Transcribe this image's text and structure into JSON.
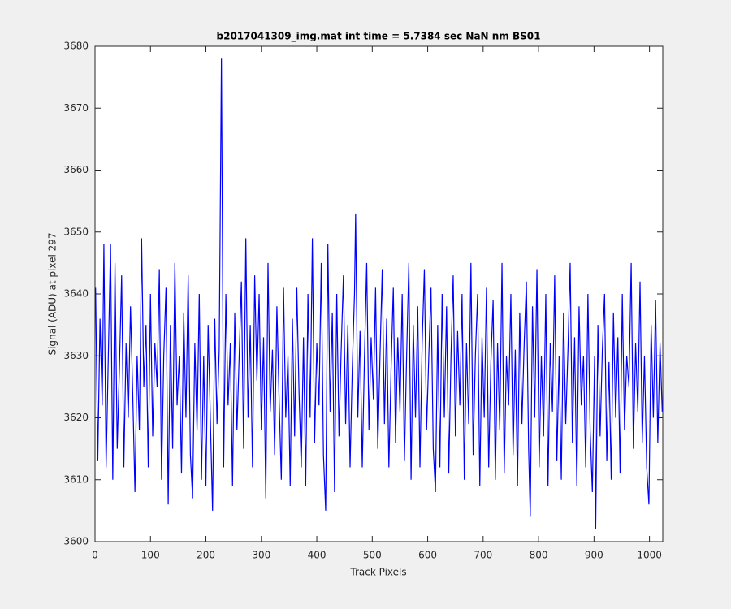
{
  "chart_data": {
    "type": "line",
    "title": "b2017041309_img.mat int time = 5.7384 sec  NaN nm BS01",
    "x_label": "Track Pixels",
    "y_label": "Signal (ADU) at pixel 297",
    "color": "#0000ff",
    "x": [
      1,
      5,
      9,
      13,
      16,
      20,
      24,
      28,
      32,
      36,
      40,
      44,
      48,
      52,
      56,
      60,
      64,
      68,
      72,
      76,
      80,
      84,
      88,
      92,
      96,
      100,
      104,
      108,
      112,
      116,
      120,
      124,
      128,
      132,
      136,
      140,
      144,
      148,
      152,
      156,
      160,
      164,
      168,
      172,
      176,
      180,
      184,
      188,
      192,
      196,
      200,
      204,
      208,
      212,
      216,
      220,
      224,
      228,
      232,
      236,
      240,
      244,
      248,
      252,
      256,
      260,
      264,
      268,
      272,
      276,
      280,
      284,
      288,
      292,
      296,
      300,
      304,
      308,
      312,
      316,
      320,
      324,
      328,
      332,
      336,
      340,
      344,
      348,
      352,
      356,
      360,
      364,
      368,
      372,
      376,
      380,
      384,
      388,
      392,
      396,
      400,
      404,
      408,
      412,
      416,
      420,
      424,
      428,
      432,
      436,
      440,
      444,
      448,
      452,
      456,
      460,
      464,
      468,
      470,
      474,
      478,
      482,
      486,
      490,
      494,
      498,
      502,
      506,
      510,
      514,
      518,
      522,
      526,
      530,
      534,
      538,
      542,
      546,
      550,
      554,
      558,
      562,
      566,
      570,
      574,
      578,
      582,
      586,
      590,
      594,
      598,
      602,
      606,
      610,
      614,
      618,
      622,
      626,
      630,
      634,
      638,
      642,
      646,
      650,
      654,
      658,
      662,
      666,
      670,
      674,
      678,
      682,
      686,
      690,
      694,
      698,
      702,
      706,
      710,
      714,
      718,
      722,
      726,
      730,
      734,
      738,
      742,
      746,
      750,
      754,
      758,
      762,
      766,
      770,
      774,
      778,
      782,
      785,
      789,
      793,
      797,
      801,
      805,
      809,
      813,
      817,
      821,
      825,
      829,
      833,
      837,
      841,
      845,
      849,
      853,
      857,
      861,
      865,
      869,
      873,
      877,
      881,
      885,
      889,
      893,
      897,
      901,
      903,
      907,
      911,
      915,
      919,
      923,
      927,
      931,
      935,
      939,
      943,
      947,
      951,
      955,
      959,
      963,
      967,
      971,
      975,
      979,
      983,
      987,
      991,
      995,
      999,
      1003,
      1007,
      1011,
      1015,
      1019,
      1023
    ],
    "values": [
      3641,
      3613,
      3636,
      3622,
      3648,
      3612,
      3630,
      3648,
      3610,
      3645,
      3615,
      3628,
      3643,
      3612,
      3632,
      3620,
      3638,
      3624,
      3608,
      3630,
      3618,
      3649,
      3625,
      3635,
      3612,
      3640,
      3617,
      3632,
      3625,
      3644,
      3610,
      3630,
      3641,
      3606,
      3635,
      3615,
      3645,
      3622,
      3630,
      3611,
      3637,
      3620,
      3643,
      3614,
      3607,
      3632,
      3618,
      3640,
      3610,
      3630,
      3609,
      3635,
      3620,
      3605,
      3636,
      3619,
      3631,
      3678,
      3612,
      3640,
      3622,
      3632,
      3609,
      3637,
      3618,
      3630,
      3642,
      3615,
      3649,
      3620,
      3635,
      3612,
      3643,
      3626,
      3640,
      3618,
      3633,
      3607,
      3645,
      3621,
      3631,
      3614,
      3638,
      3623,
      3610,
      3641,
      3620,
      3630,
      3609,
      3636,
      3617,
      3641,
      3624,
      3612,
      3633,
      3609,
      3640,
      3620,
      3649,
      3616,
      3632,
      3622,
      3645,
      3614,
      3605,
      3648,
      3621,
      3637,
      3608,
      3640,
      3617,
      3631,
      3643,
      3619,
      3635,
      3612,
      3628,
      3640,
      3653,
      3620,
      3634,
      3612,
      3630,
      3645,
      3618,
      3633,
      3623,
      3641,
      3615,
      3630,
      3644,
      3619,
      3636,
      3612,
      3628,
      3641,
      3616,
      3633,
      3621,
      3640,
      3613,
      3630,
      3645,
      3610,
      3635,
      3620,
      3638,
      3612,
      3632,
      3644,
      3618,
      3630,
      3641,
      3615,
      3608,
      3635,
      3612,
      3640,
      3620,
      3638,
      3611,
      3630,
      3643,
      3617,
      3634,
      3622,
      3640,
      3610,
      3632,
      3619,
      3645,
      3614,
      3630,
      3640,
      3609,
      3633,
      3620,
      3641,
      3612,
      3629,
      3639,
      3610,
      3632,
      3618,
      3645,
      3611,
      3630,
      3622,
      3640,
      3614,
      3631,
      3609,
      3637,
      3619,
      3632,
      3642,
      3615,
      3604,
      3638,
      3620,
      3644,
      3612,
      3630,
      3617,
      3640,
      3609,
      3632,
      3621,
      3643,
      3613,
      3630,
      3610,
      3637,
      3619,
      3631,
      3645,
      3616,
      3633,
      3609,
      3638,
      3622,
      3630,
      3612,
      3640,
      3618,
      3608,
      3630,
      3602,
      3635,
      3617,
      3631,
      3640,
      3613,
      3629,
      3610,
      3637,
      3620,
      3633,
      3611,
      3640,
      3618,
      3630,
      3625,
      3645,
      3615,
      3632,
      3621,
      3642,
      3616,
      3630,
      3612,
      3606,
      3635,
      3620,
      3639,
      3616,
      3632,
      3621
    ],
    "xlim": [
      0,
      1024
    ],
    "xticks": [
      0,
      100,
      200,
      300,
      400,
      500,
      600,
      700,
      800,
      900,
      1000
    ],
    "ylim": [
      3600,
      3680
    ],
    "yticks": [
      3600,
      3610,
      3620,
      3630,
      3640,
      3650,
      3660,
      3670,
      3680
    ]
  }
}
